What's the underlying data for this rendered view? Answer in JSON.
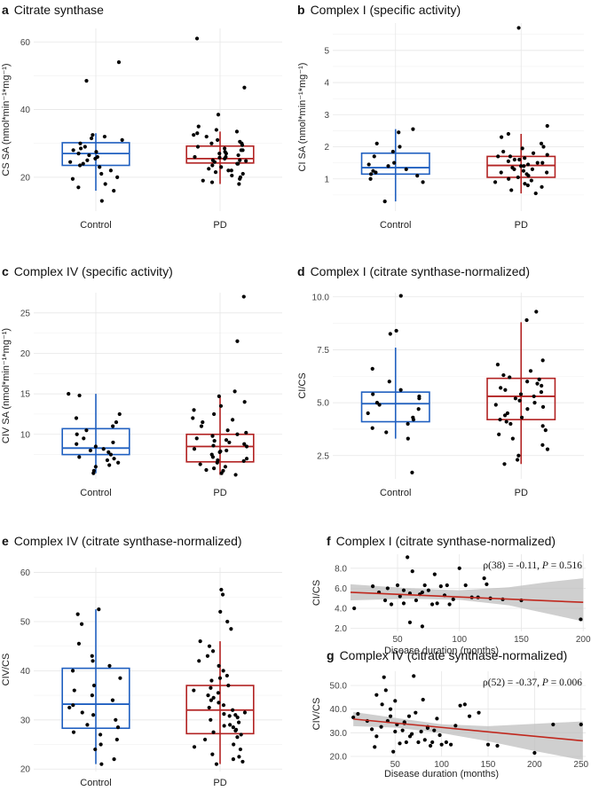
{
  "colors": {
    "control": "#1f5fc0",
    "pd": "#b22222",
    "trend": "#c0281e",
    "band": "#bfbfbf",
    "point": "#000000"
  },
  "chart_data": [
    {
      "id": "a",
      "letter": "a",
      "title": "Citrate synthase",
      "type": "box",
      "ylabel": "CS SA (nmol*min⁻¹*mg⁻¹)",
      "ylim": [
        10,
        64
      ],
      "yticks": [
        20,
        40,
        60
      ],
      "ytick_labels": [
        "20",
        "40",
        "60"
      ],
      "categories": [
        "Control",
        "PD"
      ],
      "boxes": [
        {
          "name": "Control",
          "whisker_low": 16,
          "q1": 23.5,
          "median": 27,
          "q3": 30.2,
          "whisker_high": 33
        },
        {
          "name": "PD",
          "whisker_low": 18,
          "q1": 24.2,
          "median": 25.5,
          "q3": 29.2,
          "whisker_high": 33.5
        }
      ],
      "points": [
        [
          54,
          48.5,
          32.5,
          32,
          31.5,
          31,
          30,
          29,
          28.5,
          28,
          27.5,
          27,
          26.5,
          26,
          25.5,
          25,
          24.5,
          24,
          23.5,
          23,
          22,
          21,
          20,
          19.5,
          18,
          17,
          16,
          13
        ],
        [
          61,
          46.5,
          38.5,
          35,
          34,
          33.5,
          33,
          32.5,
          32,
          31,
          30.5,
          30,
          29.5,
          29,
          28.5,
          28,
          27.5,
          27,
          26.5,
          26,
          25.8,
          25.5,
          25,
          24.8,
          24.5,
          24,
          23.5,
          23,
          22.5,
          22,
          21.5,
          21,
          20.5,
          20,
          19.5,
          19,
          18.5,
          18,
          30,
          28,
          26,
          24,
          22,
          27,
          25
        ]
      ]
    },
    {
      "id": "b",
      "letter": "b",
      "title": "Complex I (specific activity)",
      "type": "box",
      "ylabel": "CI SA (nmol*min⁻¹*mg⁻¹)",
      "ylim": [
        0,
        5.85
      ],
      "yticks": [
        1,
        2,
        3,
        4,
        5
      ],
      "ytick_labels": [
        "1",
        "2",
        "3",
        "4",
        "5"
      ],
      "categories": [
        "Control",
        "PD"
      ],
      "boxes": [
        {
          "name": "Control",
          "whisker_low": 0.3,
          "q1": 1.15,
          "median": 1.35,
          "q3": 1.8,
          "whisker_high": 2.55
        },
        {
          "name": "PD",
          "whisker_low": 0.55,
          "q1": 1.05,
          "median": 1.42,
          "q3": 1.7,
          "whisker_high": 2.4
        }
      ],
      "points": [
        [
          2.55,
          2.45,
          2.1,
          2.0,
          1.85,
          1.7,
          1.5,
          1.45,
          1.4,
          1.3,
          1.25,
          1.2,
          1.15,
          1.1,
          1.0,
          0.9,
          0.3
        ],
        [
          5.7,
          2.65,
          2.4,
          2.3,
          2.1,
          2.0,
          1.95,
          1.85,
          1.8,
          1.75,
          1.7,
          1.65,
          1.6,
          1.55,
          1.5,
          1.45,
          1.4,
          1.35,
          1.3,
          1.25,
          1.2,
          1.15,
          1.1,
          1.05,
          1.0,
          0.95,
          0.9,
          0.85,
          0.8,
          0.75,
          0.65,
          0.55,
          1.5,
          1.4,
          1.3,
          1.6,
          1.2,
          1.7
        ]
      ]
    },
    {
      "id": "c",
      "letter": "c",
      "title": "Complex IV (specific activity)",
      "type": "box",
      "ylabel": "CIV SA (nmol*min⁻¹*mg⁻¹)",
      "ylim": [
        4.5,
        27.5
      ],
      "yticks": [
        10,
        15,
        20,
        25
      ],
      "ytick_labels": [
        "10",
        "15",
        "20",
        "25"
      ],
      "categories": [
        "Control",
        "PD"
      ],
      "boxes": [
        {
          "name": "Control",
          "whisker_low": 5.2,
          "q1": 7.5,
          "median": 8.3,
          "q3": 10.7,
          "whisker_high": 15
        },
        {
          "name": "PD",
          "whisker_low": 5,
          "q1": 6.6,
          "median": 8.5,
          "q3": 10,
          "whisker_high": 14.7
        }
      ],
      "points": [
        [
          15,
          14.8,
          12.5,
          12,
          11.5,
          11,
          10.5,
          10,
          9.5,
          9,
          8.8,
          8.5,
          8.2,
          8,
          7.8,
          7.5,
          7.2,
          7,
          6.8,
          6.5,
          6.2,
          6,
          5.5,
          5.2
        ],
        [
          27,
          21.5,
          15.3,
          14.7,
          14,
          13.5,
          13,
          12.5,
          12,
          11.5,
          11,
          10.5,
          10,
          9.8,
          9.5,
          9.2,
          9,
          8.8,
          8.5,
          8.2,
          8,
          7.8,
          7.5,
          7.2,
          7,
          6.8,
          6.5,
          6.3,
          6,
          5.8,
          5.5,
          5.2,
          5,
          8.6,
          7.9,
          9.3,
          6.7,
          10.2,
          5.6,
          11.8
        ]
      ]
    },
    {
      "id": "d",
      "letter": "d",
      "title": "Complex I (citrate synthase-normalized)",
      "type": "box",
      "ylabel": "CI/CS",
      "ylim": [
        1.4,
        10.2
      ],
      "yticks": [
        2.5,
        5.0,
        7.5,
        10.0
      ],
      "ytick_labels": [
        "2.5",
        "5.0",
        "7.5",
        "10.0"
      ],
      "categories": [
        "Control",
        "PD"
      ],
      "boxes": [
        {
          "name": "Control",
          "whisker_low": 3.3,
          "q1": 4.1,
          "median": 4.95,
          "q3": 5.5,
          "whisker_high": 7.6
        },
        {
          "name": "PD",
          "whisker_low": 2.1,
          "q1": 4.2,
          "median": 5.3,
          "q3": 6.15,
          "whisker_high": 8.8
        }
      ],
      "points": [
        [
          10.05,
          8.4,
          8.25,
          6.6,
          6.0,
          5.6,
          5.4,
          5.3,
          5.2,
          5.0,
          4.9,
          4.7,
          4.5,
          4.3,
          4.2,
          4.0,
          3.8,
          3.6,
          3.3,
          1.7
        ],
        [
          9.3,
          8.9,
          7.0,
          6.8,
          6.5,
          6.3,
          6.1,
          6.0,
          5.9,
          5.8,
          5.6,
          5.5,
          5.4,
          5.3,
          5.2,
          5.0,
          4.9,
          4.7,
          4.5,
          4.3,
          4.2,
          4.1,
          4.0,
          3.9,
          3.7,
          3.5,
          3.3,
          3.0,
          2.8,
          2.5,
          2.3,
          2.1,
          5.7,
          4.8,
          5.1,
          6.2,
          4.4
        ]
      ]
    },
    {
      "id": "e",
      "letter": "e",
      "title": "Complex IV (citrate synthase-normalized)",
      "type": "box",
      "ylabel": "CIV/CS",
      "ylim": [
        19.5,
        61
      ],
      "yticks": [
        20,
        30,
        40,
        50,
        60
      ],
      "ytick_labels": [
        "20",
        "30",
        "40",
        "50",
        "60"
      ],
      "categories": [
        "Control",
        "PD"
      ],
      "boxes": [
        {
          "name": "Control",
          "whisker_low": 21,
          "q1": 28.3,
          "median": 33.2,
          "q3": 40.5,
          "whisker_high": 52.5
        },
        {
          "name": "PD",
          "whisker_low": 21,
          "q1": 27.2,
          "median": 32,
          "q3": 37,
          "whisker_high": 46
        }
      ],
      "points": [
        [
          52.5,
          51.5,
          49.5,
          45.5,
          43,
          42,
          41,
          40,
          38.5,
          37,
          36,
          35,
          34,
          33,
          32.5,
          31.5,
          31,
          30,
          29,
          28.5,
          27.5,
          27,
          26,
          25,
          24,
          22,
          21
        ],
        [
          56.5,
          55.5,
          52,
          50,
          48.5,
          46,
          45,
          44,
          43,
          42,
          41,
          40,
          39,
          38,
          37,
          36.5,
          36,
          35,
          34.5,
          34,
          33,
          32.5,
          32,
          31.5,
          31,
          30.5,
          30,
          29.5,
          29,
          28.5,
          28,
          27.5,
          27,
          26.5,
          26,
          25,
          24.5,
          24,
          23,
          22.5,
          22,
          21.5,
          21,
          33.5,
          35.5,
          30.8,
          28.8,
          38.5,
          27.8,
          31.2
        ]
      ]
    },
    {
      "id": "f",
      "letter": "f",
      "title": "Complex I (citrate synthase-normalized)",
      "type": "scatter",
      "xlabel": "Disease duration (months)",
      "ylabel": "CI/CS",
      "xlim": [
        12,
        202
      ],
      "ylim": [
        1.7,
        9.4
      ],
      "xticks": [
        50,
        100,
        150,
        200
      ],
      "xtick_labels": [
        "50",
        "100",
        "150",
        "200"
      ],
      "yticks": [
        2,
        4,
        6,
        8
      ],
      "ytick_labels": [
        "2.0",
        "4.0",
        "6.0",
        "8.0"
      ],
      "annotation": {
        "rho": "ρ(38) = -0.11, ",
        "p_label": "P",
        "p_value": " = 0.516"
      },
      "trend": {
        "x0": 12,
        "y0": 5.6,
        "x1": 200,
        "y1": 4.6
      },
      "band_upper": [
        [
          12,
          6.4
        ],
        [
          60,
          6.0
        ],
        [
          100,
          5.8
        ],
        [
          140,
          6.1
        ],
        [
          170,
          6.6
        ],
        [
          200,
          7.0
        ]
      ],
      "band_lower": [
        [
          12,
          4.8
        ],
        [
          60,
          4.95
        ],
        [
          100,
          4.85
        ],
        [
          140,
          4.3
        ],
        [
          170,
          3.5
        ],
        [
          200,
          2.7
        ]
      ],
      "x": [
        15,
        30,
        35,
        40,
        42,
        45,
        50,
        52,
        55,
        58,
        60,
        60,
        62,
        65,
        68,
        70,
        70,
        72,
        75,
        78,
        80,
        82,
        85,
        88,
        90,
        92,
        95,
        100,
        105,
        110,
        115,
        120,
        122,
        125,
        135,
        150,
        198,
        55
      ],
      "y": [
        4.0,
        6.2,
        5.6,
        4.8,
        6.0,
        4.4,
        6.3,
        5.2,
        4.5,
        9.1,
        5.5,
        2.6,
        7.7,
        4.8,
        5.4,
        5.6,
        2.2,
        6.3,
        5.8,
        4.4,
        7.4,
        4.5,
        6.2,
        5.3,
        6.3,
        4.4,
        4.9,
        8.0,
        6.3,
        5.1,
        5.1,
        7.0,
        6.4,
        5.0,
        4.9,
        4.8,
        2.9,
        5.8
      ]
    },
    {
      "id": "g",
      "letter": "g",
      "title": "Complex IV (citrate synthase-normalized)",
      "type": "scatter",
      "xlabel": "Disease duration (months)",
      "ylabel": "CIV/CS",
      "xlim": [
        2,
        255
      ],
      "ylim": [
        20,
        56
      ],
      "xticks": [
        50,
        100,
        150,
        200,
        250
      ],
      "xtick_labels": [
        "50",
        "100",
        "150",
        "200",
        "250"
      ],
      "yticks": [
        20,
        30,
        40,
        50
      ],
      "ytick_labels": [
        "20.0",
        "30.0",
        "40.0",
        "50.0"
      ],
      "annotation": {
        "rho": "ρ(52) = -0.37, ",
        "p_label": "P",
        "p_value": " = 0.006"
      },
      "trend": {
        "x0": 5,
        "y0": 35.8,
        "x1": 252,
        "y1": 26.6
      },
      "band_upper": [
        [
          5,
          38.8
        ],
        [
          50,
          36.3
        ],
        [
          100,
          33.6
        ],
        [
          150,
          32.8
        ],
        [
          200,
          33.8
        ],
        [
          252,
          34.8
        ]
      ],
      "band_lower": [
        [
          5,
          32.8
        ],
        [
          50,
          32.2
        ],
        [
          100,
          29.9
        ],
        [
          150,
          26.4
        ],
        [
          200,
          22.3
        ],
        [
          252,
          18.4
        ]
      ],
      "x": [
        5,
        10,
        20,
        25,
        30,
        35,
        38,
        40,
        42,
        45,
        48,
        50,
        52,
        55,
        58,
        60,
        62,
        65,
        68,
        70,
        72,
        75,
        78,
        80,
        82,
        85,
        88,
        90,
        92,
        95,
        98,
        100,
        105,
        110,
        115,
        120,
        125,
        130,
        140,
        150,
        160,
        200,
        220,
        250,
        30,
        45,
        60,
        85,
        28,
        36,
        50,
        66
      ],
      "y": [
        36.5,
        38,
        35,
        31.5,
        46,
        32.5,
        53.5,
        48,
        35,
        37,
        22,
        30.5,
        33.5,
        25.5,
        31,
        34,
        26,
        37,
        29.5,
        54,
        38.5,
        26,
        30.5,
        44,
        27,
        32,
        24.5,
        26,
        31,
        36,
        29,
        25,
        26,
        25,
        33,
        41.5,
        42,
        37,
        38.5,
        25,
        24.5,
        21.5,
        33.5,
        33.5,
        28.5,
        40,
        34.5,
        32.5,
        24,
        42,
        43.5,
        28.5
      ]
    }
  ]
}
